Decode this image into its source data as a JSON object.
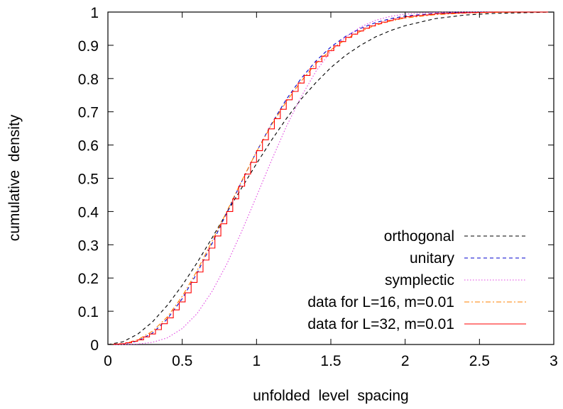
{
  "chart_data": {
    "type": "line",
    "title": "",
    "xlabel": "unfolded  level  spacing",
    "ylabel": "cumulative  density",
    "xlim": [
      0,
      3
    ],
    "ylim": [
      0,
      1
    ],
    "x_ticks": [
      "0",
      "0.5",
      "1",
      "1.5",
      "2",
      "2.5",
      "3"
    ],
    "y_ticks": [
      "0",
      "0.1",
      "0.2",
      "0.3",
      "0.4",
      "0.5",
      "0.6",
      "0.7",
      "0.8",
      "0.9",
      "1"
    ],
    "grid": false,
    "legend_position": "bottom-right",
    "series": [
      {
        "name": "orthogonal",
        "color": "#000000",
        "dash": "dashed",
        "x": [
          0,
          0.1,
          0.2,
          0.3,
          0.4,
          0.5,
          0.6,
          0.7,
          0.8,
          0.9,
          1.0,
          1.1,
          1.2,
          1.3,
          1.4,
          1.5,
          1.6,
          1.7,
          1.8,
          1.9,
          2.0,
          2.2,
          2.4,
          2.6,
          2.8,
          3.0
        ],
        "y": [
          0,
          0.008,
          0.031,
          0.068,
          0.118,
          0.178,
          0.246,
          0.32,
          0.397,
          0.471,
          0.544,
          0.614,
          0.679,
          0.738,
          0.788,
          0.833,
          0.87,
          0.9,
          0.925,
          0.944,
          0.959,
          0.98,
          0.991,
          0.996,
          0.998,
          1.0
        ]
      },
      {
        "name": "unitary",
        "color": "#0000cc",
        "dash": "dashed",
        "x": [
          0,
          0.1,
          0.2,
          0.3,
          0.4,
          0.5,
          0.6,
          0.7,
          0.8,
          0.9,
          1.0,
          1.1,
          1.2,
          1.3,
          1.4,
          1.5,
          1.6,
          1.7,
          1.8,
          1.9,
          2.0,
          2.2,
          2.4,
          2.6,
          2.8,
          3.0
        ],
        "y": [
          0,
          0.0013,
          0.0105,
          0.0344,
          0.077,
          0.138,
          0.215,
          0.303,
          0.396,
          0.49,
          0.58,
          0.663,
          0.737,
          0.8,
          0.853,
          0.895,
          0.927,
          0.951,
          0.968,
          0.98,
          0.988,
          0.996,
          0.999,
          1.0,
          1.0,
          1.0
        ]
      },
      {
        "name": "symplectic",
        "color": "#e040e0",
        "dash": "dotted",
        "x": [
          0,
          0.1,
          0.2,
          0.3,
          0.4,
          0.5,
          0.6,
          0.7,
          0.8,
          0.9,
          1.0,
          1.1,
          1.2,
          1.3,
          1.4,
          1.5,
          1.6,
          1.7,
          1.8,
          1.9,
          2.0,
          2.2,
          2.4,
          2.6,
          2.8,
          3.0
        ],
        "y": [
          0,
          0.0001,
          0.0013,
          0.0065,
          0.02,
          0.048,
          0.093,
          0.159,
          0.242,
          0.34,
          0.446,
          0.553,
          0.655,
          0.745,
          0.822,
          0.882,
          0.925,
          0.955,
          0.975,
          0.987,
          0.994,
          0.999,
          1.0,
          1.0,
          1.0,
          1.0
        ]
      },
      {
        "name": "data for L=16, m=0.01",
        "color": "#ff8000",
        "dash": "dashdot",
        "x": [
          0,
          0.1,
          0.2,
          0.3,
          0.4,
          0.5,
          0.6,
          0.7,
          0.8,
          0.9,
          1.0,
          1.1,
          1.2,
          1.3,
          1.4,
          1.5,
          1.6,
          1.7,
          1.8,
          1.9,
          2.0,
          2.2,
          2.4,
          2.6,
          2.8,
          3.0
        ],
        "y": [
          0,
          0.002,
          0.014,
          0.04,
          0.083,
          0.145,
          0.222,
          0.31,
          0.4,
          0.492,
          0.58,
          0.66,
          0.73,
          0.792,
          0.845,
          0.886,
          0.918,
          0.942,
          0.96,
          0.973,
          0.982,
          0.992,
          0.997,
          0.999,
          1.0,
          1.0
        ]
      },
      {
        "name": "data for L=32, m=0.01",
        "color": "#ff0000",
        "dash": "solid",
        "step": true,
        "x": [
          0,
          0.1,
          0.2,
          0.3,
          0.4,
          0.5,
          0.6,
          0.7,
          0.8,
          0.9,
          1.0,
          1.1,
          1.2,
          1.3,
          1.4,
          1.5,
          1.6,
          1.7,
          1.8,
          1.9,
          2.0,
          2.2,
          2.4,
          2.6,
          2.8,
          3.0
        ],
        "y": [
          0,
          0.003,
          0.014,
          0.036,
          0.08,
          0.14,
          0.218,
          0.308,
          0.4,
          0.495,
          0.583,
          0.665,
          0.736,
          0.799,
          0.851,
          0.892,
          0.924,
          0.948,
          0.965,
          0.977,
          0.986,
          0.995,
          0.998,
          1.0,
          1.0,
          1.0
        ]
      }
    ]
  }
}
